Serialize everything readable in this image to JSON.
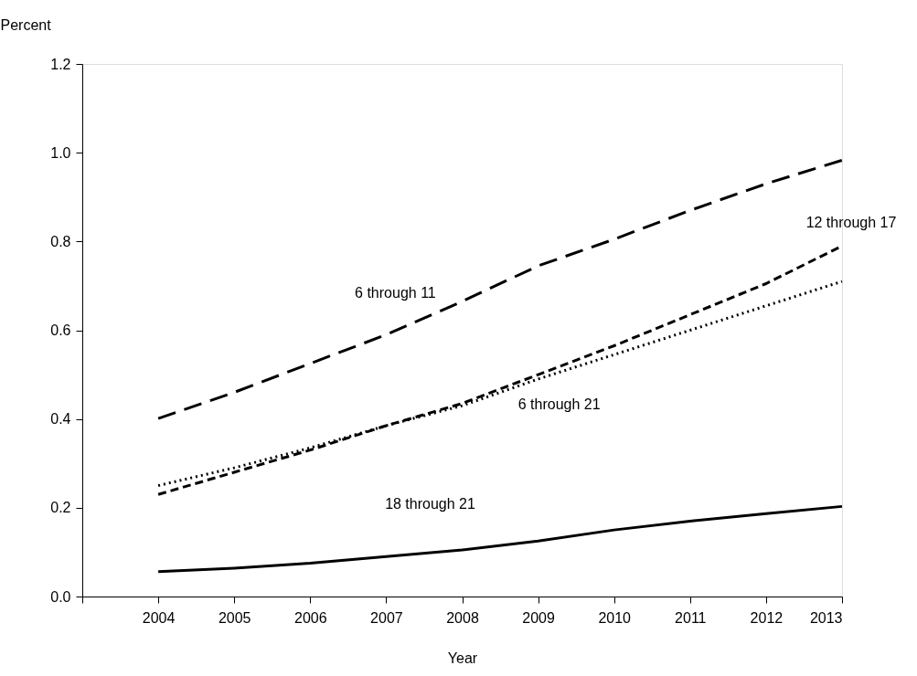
{
  "chart_data": {
    "type": "line",
    "xlabel": "Year",
    "ylabel": "Percent",
    "x": [
      2004,
      2005,
      2006,
      2007,
      2008,
      2009,
      2010,
      2011,
      2012,
      2013
    ],
    "xlim": [
      2003,
      2013
    ],
    "xticks": [
      {
        "value": 2003,
        "label": null
      },
      2004,
      2005,
      2006,
      2007,
      2008,
      2009,
      2010,
      2011,
      2012,
      2013
    ],
    "ylim": [
      0,
      1.2
    ],
    "yticks": [
      {
        "value": 0,
        "label": "0.0"
      },
      0.2,
      0.4,
      0.6,
      0.8,
      {
        "value": 1,
        "label": "1.0"
      },
      1.2
    ],
    "grid": false,
    "marker": "none",
    "series": [
      {
        "name": "6 through 11",
        "color": "#000000",
        "line_style": "long_dashed",
        "values": [
          0.401,
          0.46,
          0.525,
          0.59,
          0.665,
          0.745,
          0.805,
          0.87,
          0.93,
          0.983
        ]
      },
      {
        "name": "12 through 17",
        "color": "#000000",
        "line_style": "dashed",
        "values": [
          0.23,
          0.28,
          0.33,
          0.385,
          0.435,
          0.5,
          0.565,
          0.635,
          0.705,
          0.79
        ]
      },
      {
        "name": "6 through 21",
        "color": "#000000",
        "line_style": "dotted",
        "values": [
          0.25,
          0.29,
          0.335,
          0.385,
          0.43,
          0.49,
          0.545,
          0.6,
          0.655,
          0.71
        ]
      },
      {
        "name": "18 through 21",
        "color": "#000000",
        "line_style": "solid",
        "values": [
          0.056,
          0.064,
          0.075,
          0.09,
          0.105,
          0.125,
          0.15,
          0.17,
          0.187,
          0.203
        ]
      }
    ]
  }
}
